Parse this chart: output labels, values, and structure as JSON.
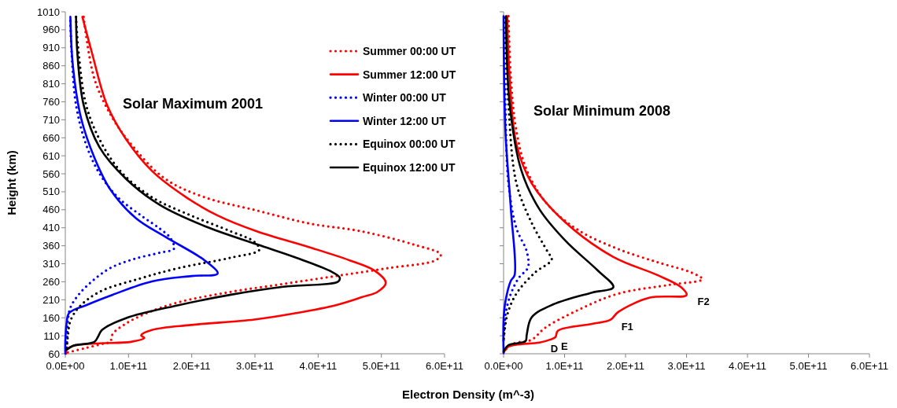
{
  "chart_data": [
    {
      "type": "line",
      "title": "Solar Maximum 2001",
      "xlabel": "Electron Density (m^-3)",
      "ylabel": "Height (km)",
      "legend": "top right",
      "grid": false,
      "xlim": [
        0,
        600000000000.0
      ],
      "xticks": [
        {
          "value": 0,
          "label": "0.0E+00"
        },
        {
          "value": 100000000000.0,
          "label": "1.0E+11"
        },
        {
          "value": 200000000000.0,
          "label": "2.0E+11"
        },
        {
          "value": 300000000000.0,
          "label": "3.0E+11"
        },
        {
          "value": 400000000000.0,
          "label": "4.0E+11"
        },
        {
          "value": 500000000000.0,
          "label": "5.0E+11"
        },
        {
          "value": 600000000000.0,
          "label": "6.0E+11"
        }
      ],
      "ylim": [
        60,
        1010
      ],
      "yticks": [
        60,
        110,
        160,
        210,
        260,
        310,
        360,
        410,
        460,
        510,
        560,
        610,
        660,
        710,
        760,
        810,
        860,
        910,
        960,
        1010
      ],
      "series": [
        {
          "name": "Summer 00:00 UT",
          "color": "#ff0000",
          "line_style": "dotted",
          "x": [
            29000000000.0,
            46000000000.0,
            75000000000.0,
            108000000000.0,
            158000000000.0,
            220000000000.0,
            303000000000.0,
            386000000000.0,
            469000000000.0,
            552000000000.0,
            594000000000.0,
            586000000000.0,
            511000000000.0,
            428000000000.0,
            345000000000.0,
            262000000000.0,
            179000000000.0,
            129000000000.0,
            96000000000.0,
            75000000000.0,
            71000000000.0,
            62000000000.0,
            30000000000.0,
            0
          ],
          "values": [
            996,
            824,
            714,
            634,
            546,
            495,
            458,
            422,
            400,
            363,
            336,
            320,
            298,
            276,
            254,
            232,
            203,
            173,
            144,
            115,
            93,
            89,
            75,
            62
          ]
        },
        {
          "name": "Summer 12:00 UT",
          "color": "#ff0000",
          "line_style": "solid",
          "x": [
            27000000000.0,
            42000000000.0,
            66000000000.0,
            96000000000.0,
            137000000000.0,
            191000000000.0,
            241000000000.0,
            303000000000.0,
            386000000000.0,
            449000000000.0,
            490000000000.0,
            507000000000.0,
            494000000000.0,
            469000000000.0,
            428000000000.0,
            365000000000.0,
            299000000000.0,
            199000000000.0,
            137000000000.0,
            120000000000.0,
            125000000000.0,
            104000000000.0,
            54000000000.0,
            12000000000.0,
            2000000000.0,
            1000000000.0
          ],
          "values": [
            996,
            897,
            751,
            656,
            568,
            495,
            444,
            400,
            356,
            320,
            290,
            257,
            232,
            217,
            195,
            173,
            155,
            140,
            126,
            111,
            104,
            93,
            89,
            82,
            71,
            60
          ]
        },
        {
          "name": "Winter 00:00 UT",
          "color": "#0000ff",
          "line_style": "dotted",
          "x": [
            8000000000.0,
            10000000000.0,
            17000000000.0,
            33000000000.0,
            54000000000.0,
            83000000000.0,
            120000000000.0,
            150000000000.0,
            166000000000.0,
            172000000000.0,
            150000000000.0,
            108000000000.0,
            71000000000.0,
            42000000000.0,
            21000000000.0,
            8000000000.0,
            4000000000.0,
            3000000000.0,
            2000000000.0
          ],
          "values": [
            985,
            897,
            751,
            641,
            561,
            495,
            444,
            407,
            382,
            352,
            341,
            323,
            298,
            261,
            224,
            188,
            151,
            108,
            71
          ]
        },
        {
          "name": "Winter 12:00 UT",
          "color": "#0000ff",
          "line_style": "solid",
          "x": [
            8000000000.0,
            12000000000.0,
            25000000000.0,
            46000000000.0,
            71000000000.0,
            112000000000.0,
            158000000000.0,
            220000000000.0,
            241000000000.0,
            200000000000.0,
            137000000000.0,
            75000000000.0,
            33000000000.0,
            6000000000.0,
            2000000000.0,
            0,
            0
          ],
          "values": [
            996,
            860,
            714,
            605,
            517,
            436,
            385,
            320,
            283,
            276,
            261,
            224,
            195,
            173,
            144,
            93,
            60
          ]
        },
        {
          "name": "Equinox 00:00 UT",
          "color": "#000000",
          "line_style": "dotted",
          "x": [
            17000000000.0,
            21000000000.0,
            33000000000.0,
            54000000000.0,
            87000000000.0,
            137000000000.0,
            199000000000.0,
            262000000000.0,
            299000000000.0,
            307000000000.0,
            262000000000.0,
            179000000000.0,
            116000000000.0,
            54000000000.0,
            21000000000.0,
            8000000000.0,
            4000000000.0,
            2000000000.0
          ],
          "values": [
            996,
            897,
            751,
            656,
            568,
            495,
            444,
            400,
            371,
            349,
            327,
            298,
            268,
            232,
            188,
            151,
            108,
            71
          ]
        },
        {
          "name": "Equinox 12:00 UT",
          "color": "#000000",
          "line_style": "solid",
          "x": [
            17000000000.0,
            19000000000.0,
            29000000000.0,
            54000000000.0,
            96000000000.0,
            150000000000.0,
            220000000000.0,
            303000000000.0,
            365000000000.0,
            419000000000.0,
            434000000000.0,
            432000000000.0,
            345000000000.0,
            262000000000.0,
            179000000000.0,
            96000000000.0,
            58000000000.0,
            52000000000.0,
            46000000000.0,
            12000000000.0,
            2000000000.0
          ],
          "values": [
            996,
            897,
            751,
            634,
            546,
            473,
            415,
            364,
            327,
            290,
            272,
            261,
            246,
            224,
            195,
            159,
            126,
            108,
            93,
            82,
            71
          ]
        }
      ]
    },
    {
      "type": "line",
      "title": "Solar Minimum 2008",
      "grid": false,
      "tick_labels": "x",
      "xlim": [
        0,
        600000000000.0
      ],
      "xticks": [
        {
          "value": 0,
          "label": "0.0E+00"
        },
        {
          "value": 100000000000.0,
          "label": "1.0E+11"
        },
        {
          "value": 200000000000.0,
          "label": "2.0E+11"
        },
        {
          "value": 300000000000.0,
          "label": "3.0E+11"
        },
        {
          "value": 400000000000.0,
          "label": "4.0E+11"
        },
        {
          "value": 500000000000.0,
          "label": "5.0E+11"
        },
        {
          "value": 600000000000.0,
          "label": "6.0E+11"
        }
      ],
      "ylim": [
        60,
        1010
      ],
      "yticks": [
        60,
        110,
        160,
        210,
        260,
        310,
        360,
        410,
        460,
        510,
        560,
        610,
        660,
        710,
        760,
        810,
        860,
        910,
        960,
        1010
      ],
      "annotations": [
        {
          "text": "F2",
          "x": 300000000000.0,
          "y": 223
        },
        {
          "text": "F1",
          "x": 175000000000.0,
          "y": 154
        },
        {
          "text": "E",
          "x": 76000000000.0,
          "y": 99
        },
        {
          "text": "D",
          "x": 59000000000.0,
          "y": 91
        }
      ],
      "series": [
        {
          "color": "#ff0000",
          "line_style": "dotted",
          "x": [
            8000000000.0,
            12000000000.0,
            21000000000.0,
            38000000000.0,
            72000000000.0,
            124000000000.0,
            188000000000.0,
            253000000000.0,
            309000000000.0,
            326000000000.0,
            274000000000.0,
            188000000000.0,
            124000000000.0,
            68000000000.0,
            46000000000.0,
            16000000000.0,
            0
          ],
          "values": [
            998,
            826,
            680,
            570,
            475,
            402,
            351,
            314,
            285,
            267,
            252,
            227,
            183,
            132,
            99,
            88,
            66
          ]
        },
        {
          "color": "#ff0000",
          "line_style": "solid",
          "x": [
            6000000000.0,
            10000000000.0,
            21000000000.0,
            46000000000.0,
            102000000000.0,
            180000000000.0,
            253000000000.0,
            291000000000.0,
            300000000000.0,
            240000000000.0,
            188000000000.0,
            175000000000.0,
            145000000000.0,
            89000000000.0,
            85000000000.0,
            76000000000.0,
            59000000000.0,
            8000000000.0,
            0
          ],
          "values": [
            998,
            826,
            643,
            534,
            424,
            329,
            278,
            245,
            223,
            216,
            176,
            154,
            143,
            124,
            106,
            99,
            91,
            80,
            62
          ]
        },
        {
          "color": "#0000ff",
          "line_style": "dotted",
          "x": [
            1000000000.0,
            3000000000.0,
            8000000000.0,
            21000000000.0,
            38000000000.0,
            40000000000.0,
            25000000000.0,
            12000000000.0,
            3000000000.0,
            0
          ],
          "values": [
            994,
            753,
            534,
            409,
            344,
            300,
            271,
            227,
            168,
            95
          ]
        },
        {
          "color": "#0000ff",
          "line_style": "solid",
          "x": [
            0,
            3000000000.0,
            12000000000.0,
            18000000000.0,
            12000000000.0,
            3000000000.0,
            0,
            0
          ],
          "values": [
            998,
            680,
            461,
            278,
            263,
            205,
            154,
            62
          ]
        },
        {
          "color": "#000000",
          "line_style": "dotted",
          "x": [
            3000000000.0,
            8000000000.0,
            21000000000.0,
            46000000000.0,
            72000000000.0,
            79000000000.0,
            51000000000.0,
            21000000000.0,
            6000000000.0,
            0
          ],
          "values": [
            994,
            753,
            534,
            424,
            344,
            322,
            285,
            227,
            168,
            95
          ]
        },
        {
          "color": "#000000",
          "line_style": "solid",
          "x": [
            4000000000.0,
            10000000000.0,
            29000000000.0,
            59000000000.0,
            102000000000.0,
            154000000000.0,
            180000000000.0,
            145000000000.0,
            81000000000.0,
            46000000000.0,
            38000000000.0,
            36000000000.0,
            8000000000.0,
            0
          ],
          "values": [
            998,
            753,
            570,
            461,
            373,
            292,
            245,
            230,
            197,
            161,
            113,
            95,
            84,
            66
          ]
        }
      ]
    }
  ]
}
